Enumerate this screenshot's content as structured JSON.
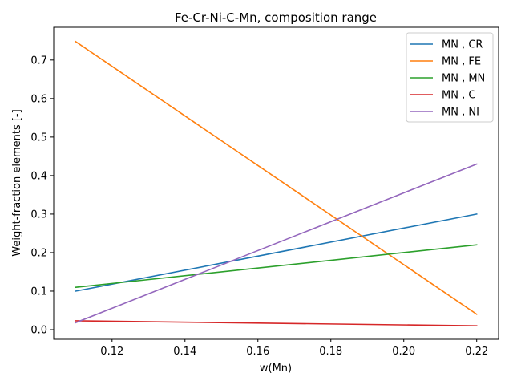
{
  "chart_data": {
    "type": "line",
    "title": "Fe-Cr-Ni-C-Mn, composition range",
    "xlabel": "w(Mn)",
    "ylabel": "Weight-fraction elements [-]",
    "xlim": [
      0.104,
      0.226
    ],
    "ylim": [
      -0.025,
      0.785
    ],
    "xticks": [
      0.12,
      0.14,
      0.16,
      0.18,
      0.2,
      0.22
    ],
    "xtick_labels": [
      "0.12",
      "0.14",
      "0.16",
      "0.18",
      "0.20",
      "0.22"
    ],
    "yticks": [
      0.0,
      0.1,
      0.2,
      0.3,
      0.4,
      0.5,
      0.6,
      0.7
    ],
    "ytick_labels": [
      "0.0",
      "0.1",
      "0.2",
      "0.3",
      "0.4",
      "0.5",
      "0.6",
      "0.7"
    ],
    "grid": false,
    "legend_position": "top-right",
    "x": [
      0.11,
      0.22
    ],
    "series": [
      {
        "name": "MN , CR",
        "color": "#1f77b4",
        "values": [
          0.1,
          0.3
        ]
      },
      {
        "name": "MN , FE",
        "color": "#ff7f0e",
        "values": [
          0.748,
          0.04
        ]
      },
      {
        "name": "MN , MN",
        "color": "#2ca02c",
        "values": [
          0.11,
          0.22
        ]
      },
      {
        "name": "MN , C",
        "color": "#d62728",
        "values": [
          0.023,
          0.01
        ]
      },
      {
        "name": "MN , NI",
        "color": "#9467bd",
        "values": [
          0.018,
          0.43
        ]
      }
    ]
  }
}
